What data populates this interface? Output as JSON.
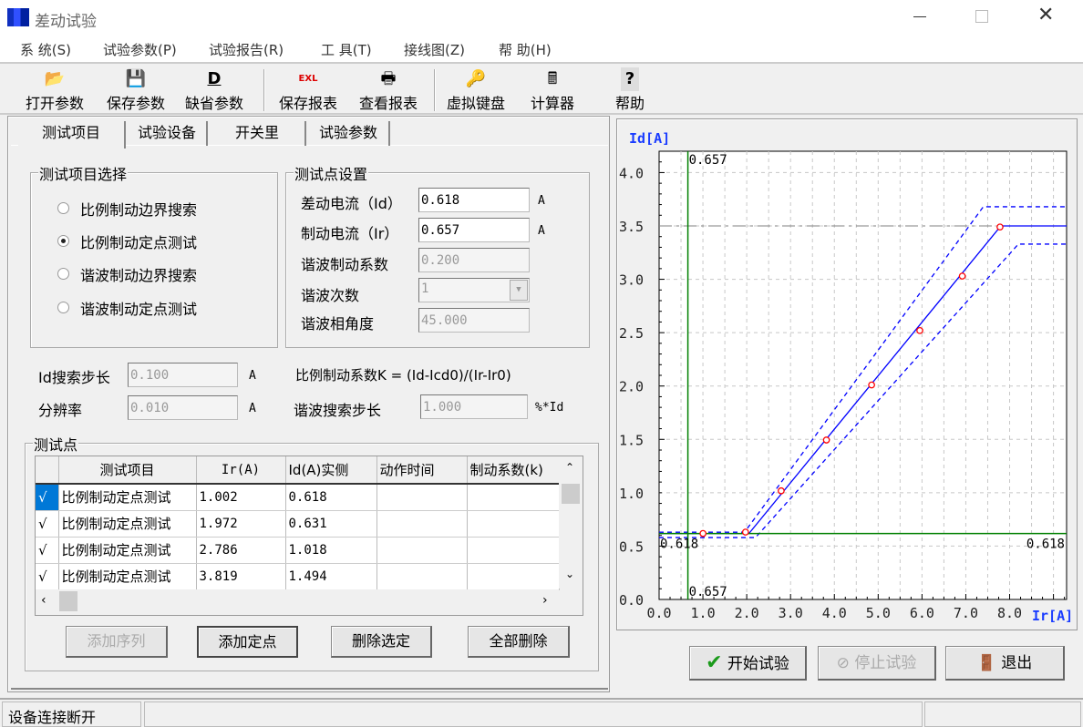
{
  "window": {
    "title": "差动试验",
    "icon": "app-logo-icon"
  },
  "menu": [
    "系 统(S)",
    "试验参数(P)",
    "试验报告(R)",
    "工 具(T)",
    "接线图(Z)",
    "帮 助(H)"
  ],
  "toolbar": [
    {
      "label": "打开参数",
      "icon": "open-folder-icon"
    },
    {
      "label": "保存参数",
      "icon": "floppy-disk-icon"
    },
    {
      "label": "缺省参数",
      "icon": "default-d-icon"
    },
    {
      "label": "保存报表",
      "icon": "excel-report-icon"
    },
    {
      "label": "查看报表",
      "icon": "printer-icon"
    },
    {
      "label": "虚拟键盘",
      "icon": "key-icon"
    },
    {
      "label": "计算器",
      "icon": "calculator-icon"
    },
    {
      "label": "帮助",
      "icon": "help-question-icon"
    }
  ],
  "tabs": [
    "测试项目",
    "试验设备",
    "开关里",
    "试验参数"
  ],
  "test_select": {
    "title": "测试项目选择",
    "options": [
      "比例制动边界搜索",
      "比例制动定点测试",
      "谐波制动边界搜索",
      "谐波制动定点测试"
    ],
    "selected": 1
  },
  "point_settings": {
    "title": "测试点设置",
    "fields": [
      {
        "label": "差动电流（Id）",
        "value": "0.618",
        "unit": "A",
        "enabled": true
      },
      {
        "label": "制动电流（Ir）",
        "value": "0.657",
        "unit": "A",
        "enabled": true
      },
      {
        "label": "谐波制动系数",
        "value": "0.200",
        "unit": "",
        "enabled": false
      },
      {
        "label": "谐波次数",
        "value": "1",
        "unit": "",
        "enabled": false
      },
      {
        "label": "谐波相角度",
        "value": "45.000",
        "unit": "",
        "enabled": false
      }
    ]
  },
  "search": {
    "id_step_label": "Id搜索步长",
    "id_step": "0.100",
    "id_step_unit": "A",
    "resolution_label": "分辨率",
    "resolution": "0.010",
    "resolution_unit": "A",
    "formula": "比例制动系数K = (Id-Icd0)/(Ir-Ir0)",
    "harm_step_label": "谐波搜索步长",
    "harm_step": "1.000",
    "harm_step_unit": "%*Id"
  },
  "points": {
    "title": "测试点",
    "columns": [
      "",
      "测试项目",
      "Ir(A)",
      "Id(A)实侧",
      "动作时间",
      "制动系数(k)"
    ],
    "rows": [
      {
        "check": "√",
        "item": "比例制动定点测试",
        "ir": "1.002",
        "id": "0.618",
        "time": "",
        "k": ""
      },
      {
        "check": "√",
        "item": "比例制动定点测试",
        "ir": "1.972",
        "id": "0.631",
        "time": "",
        "k": ""
      },
      {
        "check": "√",
        "item": "比例制动定点测试",
        "ir": "2.786",
        "id": "1.018",
        "time": "",
        "k": ""
      },
      {
        "check": "√",
        "item": "比例制动定点测试",
        "ir": "3.819",
        "id": "1.494",
        "time": "",
        "k": ""
      }
    ],
    "buttons": {
      "add_seq": "添加序列",
      "add_point": "添加定点",
      "delete_sel": "删除选定",
      "delete_all": "全部删除"
    }
  },
  "actions": {
    "start": "开始试验",
    "stop": "停止试验",
    "exit": "退出"
  },
  "status": {
    "text": "设备连接断开"
  },
  "chart_data": {
    "type": "line",
    "xlabel": "Ir[A]",
    "ylabel": "Id[A]",
    "xlim": [
      0,
      9.3
    ],
    "ylim": [
      0,
      4.2
    ],
    "grid": true,
    "xticks": [
      "0.0",
      "1.0",
      "2.0",
      "3.0",
      "4.0",
      "5.0",
      "6.0",
      "7.0",
      "8.0"
    ],
    "yticks": [
      "0.0",
      "0.5",
      "1.0",
      "1.5",
      "2.0",
      "2.5",
      "3.0",
      "3.5",
      "4.0"
    ],
    "series": [
      {
        "style": "solid",
        "color": "#0000ff",
        "x": [
          0,
          2.05,
          7.8,
          9.3
        ],
        "y": [
          0.618,
          0.618,
          3.5,
          3.5
        ]
      },
      {
        "style": "dashed",
        "color": "#0000ff",
        "x": [
          0,
          1.95,
          7.4,
          9.3
        ],
        "y": [
          0.63,
          0.63,
          3.68,
          3.68
        ]
      },
      {
        "style": "dashed",
        "color": "#0000ff",
        "x": [
          0,
          2.2,
          8.2,
          9.3
        ],
        "y": [
          0.58,
          0.58,
          3.33,
          3.33
        ]
      }
    ],
    "points": {
      "color": "#ff0000",
      "x": [
        1.002,
        1.972,
        2.786,
        3.819,
        4.85,
        5.95,
        6.92,
        7.78
      ],
      "y": [
        0.618,
        0.631,
        1.018,
        1.494,
        2.01,
        2.52,
        3.03,
        3.49
      ]
    },
    "cursor": {
      "color": "#008000",
      "ir": 0.657,
      "id": 0.618,
      "ir_label": "0.657",
      "id_label": "0.618"
    },
    "limit_line": {
      "y": 3.5,
      "color": "#808080"
    }
  }
}
